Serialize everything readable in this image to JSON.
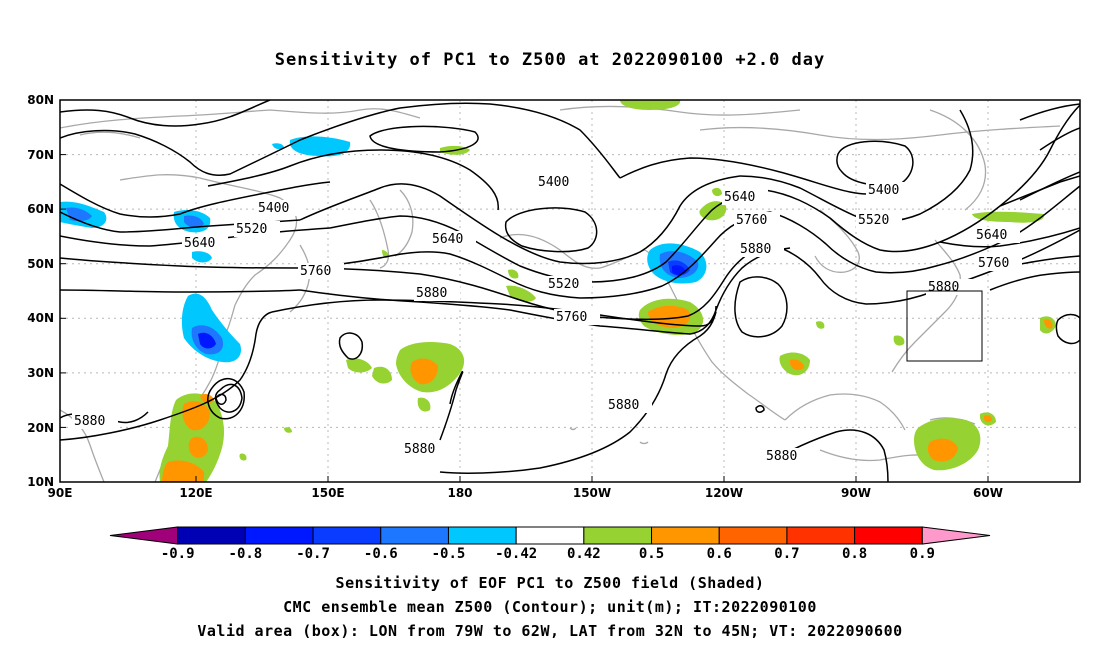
{
  "title": "Sensitivity of PC1 to Z500 at 2022090100 +2.0 day",
  "lat_ticks": [
    "80N",
    "70N",
    "60N",
    "50N",
    "40N",
    "30N",
    "20N",
    "10N"
  ],
  "lon_ticks": [
    "90E",
    "120E",
    "150E",
    "180",
    "150W",
    "120W",
    "90W",
    "60W"
  ],
  "colorbar": {
    "labels": [
      "-0.9",
      "-0.8",
      "-0.7",
      "-0.6",
      "-0.5",
      "-0.42",
      "0.42",
      "0.5",
      "0.6",
      "0.7",
      "0.8",
      "0.9"
    ],
    "colors": [
      "#a0007a",
      "#0000b4",
      "#0018ff",
      "#0a3cff",
      "#1e78ff",
      "#00c8ff",
      "#ffffff",
      "#96d232",
      "#ff9600",
      "#ff6400",
      "#ff3200",
      "#ff0000",
      "#ff99cc"
    ]
  },
  "contour_labels": {
    "c5400a": "5400",
    "c5400b": "5400",
    "c5400c": "5400",
    "c5520a": "5520",
    "c5520b": "5520",
    "c5520c": "5520",
    "c5640a": "5640",
    "c5640b": "5640",
    "c5640c": "5640",
    "c5640d": "5640",
    "c5760a": "5760",
    "c5760b": "5760",
    "c5760c": "5760",
    "c5760d": "5760",
    "c5880a": "5880",
    "c5880b": "5880",
    "c5880c": "5880",
    "c5880d": "5880",
    "c5880e": "5880",
    "c5880f": "5880"
  },
  "caption": {
    "line1": "Sensitivity of EOF PC1 to Z500 field (Shaded)",
    "line2": "CMC ensemble mean Z500 (Contour); unit(m); IT:2022090100",
    "line3": "Valid area (box): LON from 79W to 62W, LAT from 32N to 45N; VT: 2022090600"
  }
}
